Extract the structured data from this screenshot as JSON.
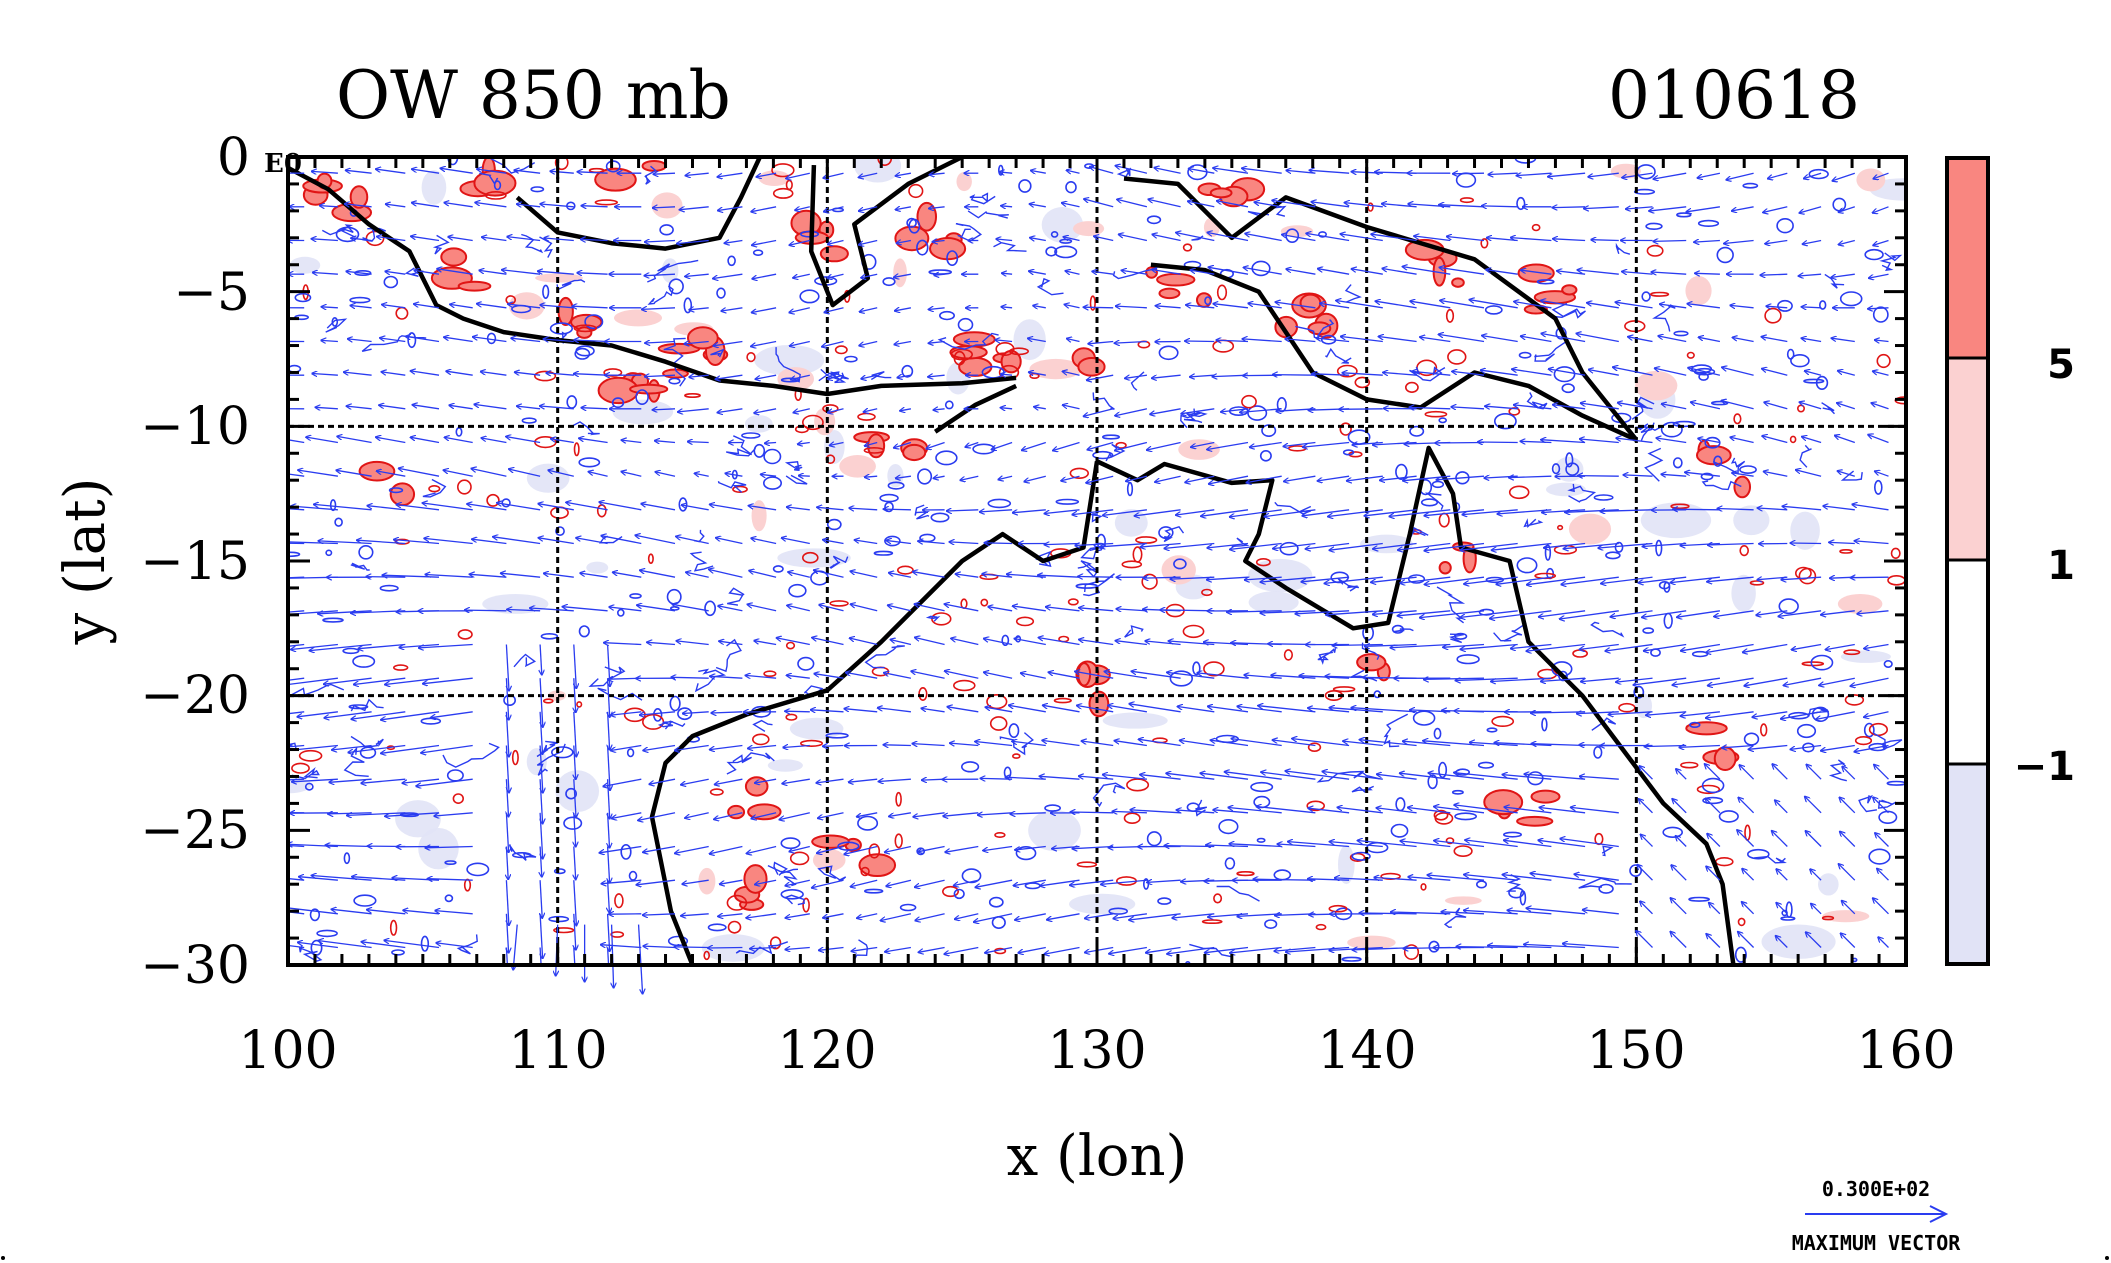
{
  "map": {
    "title_left": "OW 850 mb",
    "title_right": "010618",
    "corner_label": "E0",
    "xlabel": "x (lon)",
    "ylabel": "y (lat)",
    "x_ticks": [
      "100",
      "110",
      "120",
      "130",
      "140",
      "150",
      "160"
    ],
    "y_ticks": [
      "0",
      "−5",
      "−10",
      "−15",
      "−20",
      "−25",
      "−30"
    ],
    "lon_range": [
      100,
      160
    ],
    "lat_range": [
      -30,
      0
    ],
    "grid_lons": [
      110,
      120,
      130,
      140,
      150
    ],
    "grid_lats": [
      -10,
      -20
    ]
  },
  "colorbar": {
    "labels": [
      "5",
      "1",
      "−1"
    ],
    "levels": [
      5,
      1,
      -1
    ],
    "colors": {
      "top": "#f98680",
      "upper": "#fbd1d1",
      "middle": "#ffffff",
      "bottom": "#e1e3f6"
    }
  },
  "vector_key": {
    "value": "0.300E+02",
    "label": "MAXIMUM VECTOR"
  },
  "colors": {
    "vector": "#2a3cf0",
    "contour_neg": "#2a3cf0",
    "contour_pos": "#e01515",
    "fill_pos": "#f98680",
    "fill_pos_light": "#fbd1d1",
    "fill_neg": "#e1e3f6",
    "coast": "#000000"
  }
}
